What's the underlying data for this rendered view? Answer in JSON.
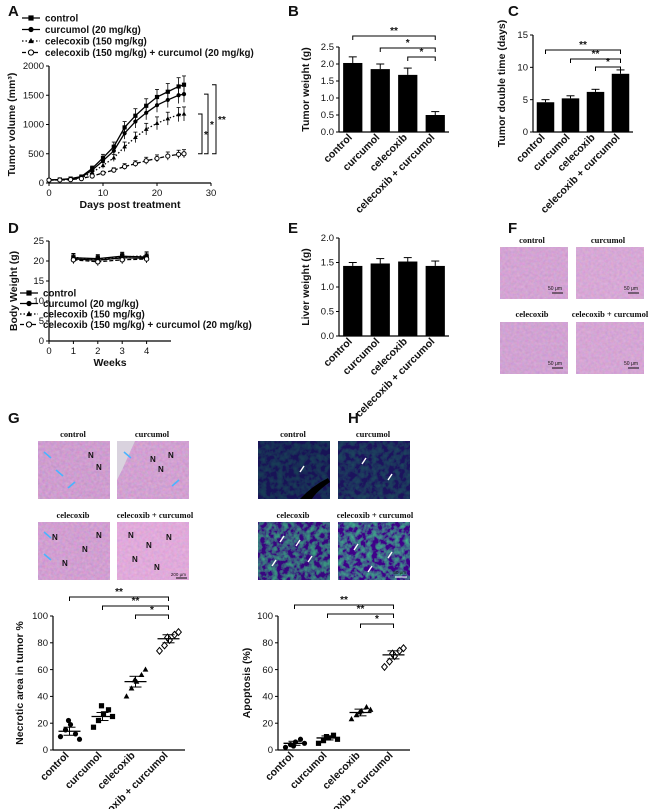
{
  "panels": {
    "A": {
      "letter": "A",
      "chart_data": {
        "type": "line",
        "ylabel": "Tumor volume (mm³)",
        "xlabel": "Days post treatment",
        "xlim": [
          0,
          30
        ],
        "ylim": [
          0,
          2000
        ],
        "xticks": [
          0,
          10,
          20,
          30
        ],
        "yticks": [
          0,
          500,
          1000,
          1500,
          2000
        ],
        "x": [
          0,
          2,
          4,
          6,
          8,
          10,
          12,
          14,
          16,
          18,
          20,
          22,
          24,
          25
        ],
        "series": [
          {
            "name": "control",
            "marker": "square",
            "style": "solid",
            "values": [
              50,
              60,
              75,
              110,
              250,
              430,
              620,
              950,
              1150,
              1320,
              1470,
              1560,
              1650,
              1680
            ],
            "err": [
              10,
              10,
              15,
              20,
              40,
              60,
              80,
              100,
              120,
              120,
              130,
              140,
              150,
              150
            ]
          },
          {
            "name": "curcumol (20 mg/kg)",
            "marker": "circle",
            "style": "solid",
            "values": [
              50,
              58,
              70,
              100,
              220,
              380,
              550,
              850,
              1050,
              1200,
              1330,
              1420,
              1500,
              1520
            ],
            "err": [
              10,
              10,
              15,
              20,
              40,
              60,
              80,
              100,
              110,
              120,
              120,
              130,
              140,
              140
            ]
          },
          {
            "name": "celecoxib (150 mg/kg)",
            "marker": "triangle",
            "style": "dotted",
            "values": [
              50,
              55,
              65,
              90,
              180,
              300,
              430,
              620,
              780,
              920,
              1020,
              1100,
              1170,
              1180
            ],
            "err": [
              10,
              10,
              12,
              18,
              30,
              50,
              60,
              80,
              90,
              100,
              110,
              110,
              120,
              120
            ]
          },
          {
            "name": "celecoxib (150 mg/kg) + curcumol (20 mg/kg)",
            "marker": "circle-open",
            "style": "dashed",
            "values": [
              50,
              52,
              58,
              75,
              120,
              170,
              220,
              280,
              330,
              380,
              420,
              460,
              490,
              500
            ],
            "err": [
              8,
              8,
              10,
              12,
              20,
              30,
              40,
              50,
              50,
              60,
              60,
              70,
              70,
              70
            ]
          }
        ],
        "significance": [
          "*",
          "*",
          "**"
        ],
        "legend_position": "top-left"
      }
    },
    "B": {
      "letter": "B",
      "chart_data": {
        "type": "bar",
        "ylabel": "Tumor weight (g)",
        "categories": [
          "control",
          "curcumol",
          "celecoxib",
          "celecoxib + curcumol"
        ],
        "values": [
          2.03,
          1.85,
          1.68,
          0.5
        ],
        "err": [
          0.18,
          0.15,
          0.2,
          0.1
        ],
        "ylim": [
          0,
          2.5
        ],
        "yticks": [
          0.0,
          0.5,
          1.0,
          1.5,
          2.0,
          2.5
        ],
        "significance": [
          "**",
          "*",
          "*"
        ]
      }
    },
    "C": {
      "letter": "C",
      "chart_data": {
        "type": "bar",
        "ylabel": "Tumor double time (days)",
        "categories": [
          "control",
          "curcumol",
          "celecoxib",
          "celecoxib + curcumol"
        ],
        "values": [
          4.6,
          5.2,
          6.2,
          9.0
        ],
        "err": [
          0.4,
          0.4,
          0.4,
          0.6
        ],
        "ylim": [
          0,
          15
        ],
        "yticks": [
          0,
          5,
          10,
          15
        ],
        "significance": [
          "**",
          "**",
          "*"
        ]
      }
    },
    "D": {
      "letter": "D",
      "chart_data": {
        "type": "line",
        "ylabel": "Body Weight (g)",
        "xlabel": "Weeks",
        "xlim": [
          0,
          5
        ],
        "ylim": [
          0,
          25
        ],
        "xticks": [
          0,
          1,
          2,
          3,
          4
        ],
        "yticks": [
          0,
          5,
          10,
          15,
          20,
          25
        ],
        "x": [
          1,
          2,
          3,
          4
        ],
        "series": [
          {
            "name": "control",
            "marker": "square",
            "style": "solid",
            "values": [
              20.8,
              20.6,
              21.2,
              21.0
            ],
            "err": [
              1.0,
              1.0,
              1.0,
              1.0
            ]
          },
          {
            "name": "curcumol (20 mg/kg)",
            "marker": "circle",
            "style": "solid",
            "values": [
              20.5,
              20.2,
              20.8,
              20.7
            ],
            "err": [
              1.0,
              1.0,
              1.0,
              1.0
            ]
          },
          {
            "name": "celecoxib (150 mg/kg)",
            "marker": "triangle",
            "style": "dotted",
            "values": [
              20.9,
              20.4,
              21.0,
              21.3
            ],
            "err": [
              1.0,
              1.0,
              1.0,
              1.0
            ]
          },
          {
            "name": "celecoxib (150 mg/kg) + curcumol (20 mg/kg)",
            "marker": "circle-open",
            "style": "dashed",
            "values": [
              20.3,
              19.8,
              20.3,
              20.5
            ],
            "err": [
              1.0,
              1.0,
              1.0,
              1.0
            ]
          }
        ],
        "legend_position": "bottom"
      }
    },
    "E": {
      "letter": "E",
      "chart_data": {
        "type": "bar",
        "ylabel": "Liver weight (g)",
        "categories": [
          "control",
          "curcumol",
          "celecoxib",
          "celecoxib + curcumol"
        ],
        "values": [
          1.43,
          1.48,
          1.52,
          1.43
        ],
        "err": [
          0.07,
          0.1,
          0.08,
          0.1
        ],
        "ylim": [
          0,
          2.0
        ],
        "yticks": [
          0.0,
          0.5,
          1.0,
          1.5,
          2.0
        ]
      }
    },
    "F": {
      "letter": "F",
      "labels": [
        "control",
        "curcumol",
        "celecoxib",
        "celecoxib + curcumol"
      ],
      "scalebar": "50 μm"
    },
    "G": {
      "letter": "G",
      "labels": [
        "control",
        "curcumol",
        "celecoxib",
        "celecoxib + curcumol"
      ],
      "necrosis_marker": "N",
      "scalebar": "200 μm",
      "chart_data": {
        "type": "scatter",
        "ylabel": "Necrotic area in tumor %",
        "categories": [
          "control",
          "curcumol",
          "celecoxib",
          "celecoxib + curcumol"
        ],
        "markers": [
          "circle",
          "square",
          "triangle",
          "diamond-open"
        ],
        "points": [
          [
            10,
            15,
            19,
            12,
            8,
            22
          ],
          [
            17,
            22,
            27,
            30,
            25,
            33
          ],
          [
            40,
            46,
            51,
            56,
            60,
            52
          ],
          [
            74,
            78,
            82,
            86,
            88,
            84
          ]
        ],
        "means": [
          14,
          25,
          51,
          83
        ],
        "sem": [
          3,
          3,
          4,
          3
        ],
        "ylim": [
          0,
          100
        ],
        "yticks": [
          0,
          20,
          40,
          60,
          80,
          100
        ],
        "significance": [
          "**",
          "**",
          "*"
        ]
      }
    },
    "H": {
      "letter": "H",
      "labels": [
        "control",
        "curcumol",
        "celecoxib",
        "celecoxib + curcumol"
      ],
      "scalebar": "50 μm",
      "chart_data": {
        "type": "scatter",
        "ylabel": "Apoptosis (%)",
        "categories": [
          "control",
          "curcumol",
          "celecoxib",
          "celecoxib + curcumol"
        ],
        "markers": [
          "circle",
          "square",
          "triangle",
          "diamond-open"
        ],
        "points": [
          [
            2,
            4,
            6,
            8,
            5,
            3
          ],
          [
            5,
            7,
            9,
            11,
            8,
            10
          ],
          [
            23,
            26,
            29,
            32,
            30,
            28
          ],
          [
            62,
            66,
            70,
            74,
            76,
            72
          ]
        ],
        "means": [
          5,
          9,
          28,
          71
        ],
        "sem": [
          1.5,
          1.5,
          2.5,
          3
        ],
        "ylim": [
          0,
          100
        ],
        "yticks": [
          0,
          20,
          40,
          60,
          80,
          100
        ],
        "significance": [
          "**",
          "**",
          "*"
        ]
      }
    }
  }
}
